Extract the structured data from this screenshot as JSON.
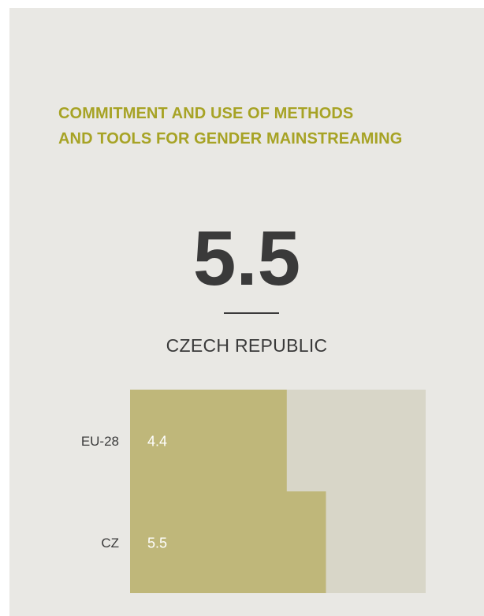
{
  "title_lines": [
    "COMMITMENT AND USE OF METHODS",
    "AND TOOLS FOR GENDER MAINSTREAMING"
  ],
  "headline_value": "5.5",
  "country": "CZECH REPUBLIC",
  "colors": {
    "background": "#e9e8e4",
    "title": "#a7a325",
    "bar": "#bfb77a",
    "track": "#d8d6c8",
    "bar_label": "#ffffff",
    "text": "#3a3a3a"
  },
  "chart_data": {
    "type": "bar",
    "orientation": "horizontal",
    "categories": [
      "EU-28",
      "CZ"
    ],
    "values": [
      4.4,
      5.5
    ],
    "value_labels": [
      "4.4",
      "5.5"
    ],
    "xlim": [
      0,
      8.3
    ]
  }
}
